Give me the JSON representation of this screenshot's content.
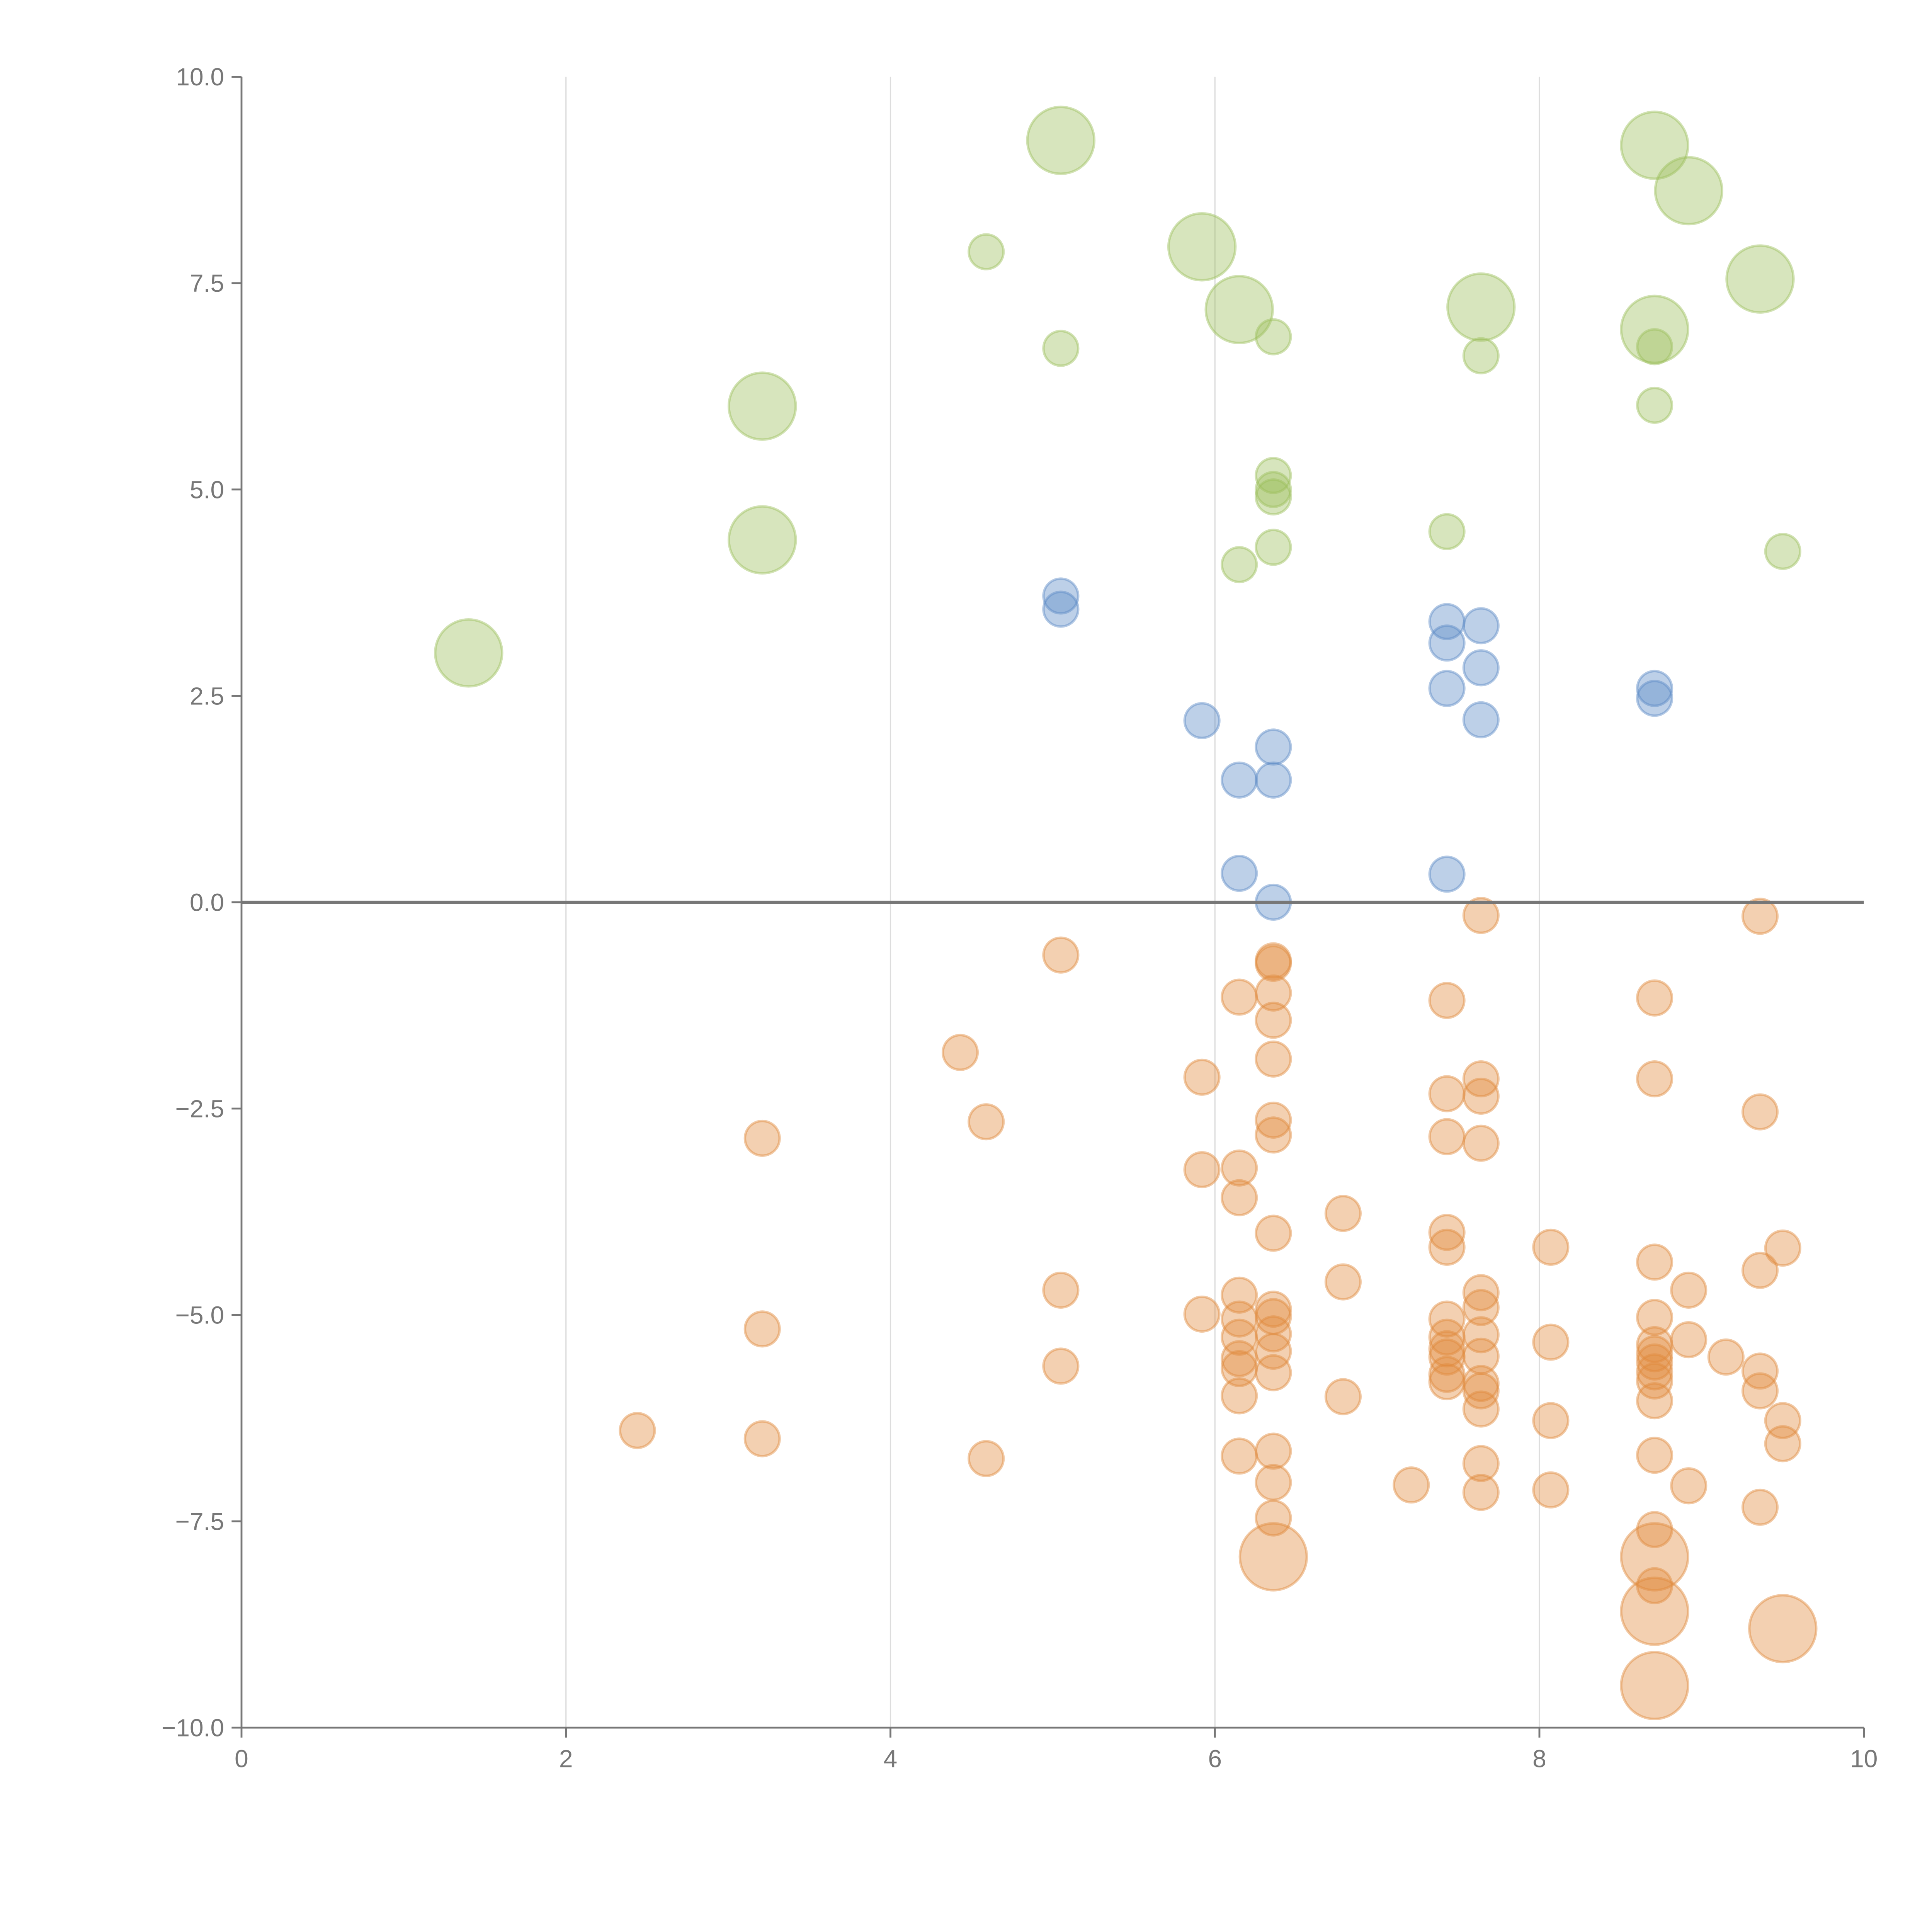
{
  "chart_data": {
    "type": "scatter",
    "title": "",
    "xlabel": "",
    "ylabel": "",
    "xlim": [
      0,
      10
    ],
    "ylim": [
      -10,
      10
    ],
    "grid": "vertical",
    "x_ticks": [
      "0",
      "2",
      "4",
      "6",
      "8",
      "10"
    ],
    "x_tick_values": [
      0,
      2,
      4,
      6,
      8,
      10
    ],
    "y_ticks": [
      "10.0",
      "7.5",
      "5.0",
      "2.5",
      "0.0",
      "−2.5",
      "−5.0",
      "−7.5",
      "−10.0"
    ],
    "y_tick_values": [
      10,
      7.5,
      5,
      2.5,
      0,
      -2.5,
      -5,
      -7.5,
      -10
    ],
    "point_format": "[x, y, size]",
    "series": [
      {
        "name": "green",
        "color": "#9bbf5a",
        "points": [
          [
            5.05,
            9.23,
            2
          ],
          [
            8.71,
            9.17,
            2
          ],
          [
            8.92,
            8.62,
            2
          ],
          [
            4.59,
            7.88,
            1
          ],
          [
            5.92,
            7.94,
            2
          ],
          [
            6.15,
            7.18,
            2
          ],
          [
            7.64,
            7.21,
            2
          ],
          [
            9.36,
            7.55,
            2
          ],
          [
            8.71,
            6.94,
            2
          ],
          [
            5.05,
            6.71,
            1
          ],
          [
            6.36,
            6.85,
            1
          ],
          [
            7.64,
            6.62,
            1
          ],
          [
            8.71,
            6.73,
            1
          ],
          [
            3.21,
            6.01,
            2
          ],
          [
            8.71,
            6.02,
            1
          ],
          [
            6.36,
            5.17,
            1
          ],
          [
            6.36,
            5.0,
            1
          ],
          [
            6.36,
            4.91,
            1
          ],
          [
            7.43,
            4.49,
            1
          ],
          [
            6.36,
            4.3,
            1
          ],
          [
            6.15,
            4.09,
            1
          ],
          [
            9.5,
            4.25,
            1
          ],
          [
            3.21,
            4.39,
            2
          ],
          [
            1.4,
            3.02,
            2
          ]
        ]
      },
      {
        "name": "blue",
        "color": "#5b8ac6",
        "points": [
          [
            5.05,
            3.71,
            1
          ],
          [
            5.05,
            3.55,
            1
          ],
          [
            7.43,
            3.4,
            1
          ],
          [
            7.43,
            3.14,
            1
          ],
          [
            7.64,
            3.35,
            1
          ],
          [
            7.64,
            2.84,
            1
          ],
          [
            7.43,
            2.59,
            1
          ],
          [
            8.71,
            2.59,
            1
          ],
          [
            8.71,
            2.47,
            1
          ],
          [
            7.64,
            2.21,
            1
          ],
          [
            5.92,
            2.2,
            1
          ],
          [
            6.36,
            1.88,
            1
          ],
          [
            6.15,
            1.48,
            1
          ],
          [
            6.36,
            1.48,
            1
          ],
          [
            6.15,
            0.35,
            1
          ],
          [
            7.43,
            0.34,
            1
          ],
          [
            6.36,
            0.0,
            1
          ]
        ]
      },
      {
        "name": "orange",
        "color": "#e08a3c",
        "points": [
          [
            7.64,
            -0.16,
            1
          ],
          [
            9.36,
            -0.17,
            1
          ],
          [
            5.05,
            -0.64,
            1
          ],
          [
            6.36,
            -0.71,
            1
          ],
          [
            6.36,
            -0.74,
            1
          ],
          [
            6.15,
            -1.15,
            1
          ],
          [
            6.36,
            -1.1,
            1
          ],
          [
            7.43,
            -1.19,
            1
          ],
          [
            8.71,
            -1.16,
            1
          ],
          [
            6.36,
            -1.43,
            1
          ],
          [
            4.43,
            -1.82,
            1
          ],
          [
            6.36,
            -1.9,
            1
          ],
          [
            5.92,
            -2.12,
            1
          ],
          [
            8.71,
            -2.14,
            1
          ],
          [
            7.64,
            -2.14,
            1
          ],
          [
            7.43,
            -2.32,
            1
          ],
          [
            7.64,
            -2.35,
            1
          ],
          [
            9.36,
            -2.54,
            1
          ],
          [
            4.59,
            -2.66,
            1
          ],
          [
            6.36,
            -2.64,
            1
          ],
          [
            6.36,
            -2.82,
            1
          ],
          [
            3.21,
            -2.86,
            1
          ],
          [
            7.43,
            -2.84,
            1
          ],
          [
            7.64,
            -2.92,
            1
          ],
          [
            5.92,
            -3.24,
            1
          ],
          [
            6.15,
            -3.22,
            1
          ],
          [
            6.15,
            -3.58,
            1
          ],
          [
            6.79,
            -3.77,
            1
          ],
          [
            7.43,
            -4.0,
            1
          ],
          [
            6.36,
            -4.01,
            1
          ],
          [
            7.43,
            -4.18,
            1
          ],
          [
            8.07,
            -4.18,
            1
          ],
          [
            9.5,
            -4.19,
            1
          ],
          [
            8.71,
            -4.36,
            1
          ],
          [
            9.36,
            -4.46,
            1
          ],
          [
            6.79,
            -4.6,
            1
          ],
          [
            5.05,
            -4.7,
            1
          ],
          [
            8.92,
            -4.7,
            1
          ],
          [
            6.15,
            -4.76,
            1
          ],
          [
            7.64,
            -4.73,
            1
          ],
          [
            7.64,
            -4.91,
            1
          ],
          [
            6.36,
            -4.93,
            1
          ],
          [
            5.92,
            -4.99,
            1
          ],
          [
            6.15,
            -5.05,
            1
          ],
          [
            7.43,
            -5.05,
            1
          ],
          [
            8.71,
            -5.03,
            1
          ],
          [
            6.36,
            -5.02,
            1
          ],
          [
            3.21,
            -5.17,
            1
          ],
          [
            6.36,
            -5.23,
            1
          ],
          [
            6.15,
            -5.27,
            1
          ],
          [
            7.43,
            -5.27,
            1
          ],
          [
            7.64,
            -5.24,
            1
          ],
          [
            8.07,
            -5.33,
            1
          ],
          [
            8.92,
            -5.3,
            1
          ],
          [
            8.71,
            -5.36,
            1
          ],
          [
            7.43,
            -5.41,
            1
          ],
          [
            6.36,
            -5.44,
            1
          ],
          [
            7.64,
            -5.5,
            1
          ],
          [
            6.15,
            -5.53,
            1
          ],
          [
            9.15,
            -5.51,
            1
          ],
          [
            8.71,
            -5.47,
            1
          ],
          [
            7.43,
            -5.51,
            1
          ],
          [
            8.71,
            -5.57,
            1
          ],
          [
            5.05,
            -5.62,
            1
          ],
          [
            6.15,
            -5.65,
            1
          ],
          [
            6.36,
            -5.7,
            1
          ],
          [
            9.36,
            -5.68,
            1
          ],
          [
            8.71,
            -5.69,
            1
          ],
          [
            7.43,
            -5.72,
            1
          ],
          [
            7.43,
            -5.81,
            1
          ],
          [
            7.64,
            -5.83,
            1
          ],
          [
            8.71,
            -5.8,
            1
          ],
          [
            9.36,
            -5.92,
            1
          ],
          [
            7.64,
            -5.92,
            1
          ],
          [
            6.15,
            -5.98,
            1
          ],
          [
            6.79,
            -5.99,
            1
          ],
          [
            8.71,
            -6.04,
            1
          ],
          [
            7.64,
            -6.14,
            1
          ],
          [
            9.5,
            -6.28,
            1
          ],
          [
            8.07,
            -6.28,
            1
          ],
          [
            2.44,
            -6.4,
            1
          ],
          [
            3.21,
            -6.5,
            1
          ],
          [
            9.5,
            -6.56,
            1
          ],
          [
            6.36,
            -6.65,
            1
          ],
          [
            6.15,
            -6.71,
            1
          ],
          [
            8.71,
            -6.7,
            1
          ],
          [
            4.59,
            -6.74,
            1
          ],
          [
            7.64,
            -6.8,
            1
          ],
          [
            6.36,
            -7.03,
            1
          ],
          [
            8.92,
            -7.07,
            1
          ],
          [
            7.21,
            -7.06,
            1
          ],
          [
            7.64,
            -7.15,
            1
          ],
          [
            8.07,
            -7.12,
            1
          ],
          [
            9.36,
            -7.33,
            1
          ],
          [
            6.36,
            -7.46,
            1
          ],
          [
            8.71,
            -7.6,
            1
          ],
          [
            6.36,
            -7.93,
            2
          ],
          [
            8.71,
            -7.93,
            2
          ],
          [
            8.71,
            -8.28,
            1
          ],
          [
            8.71,
            -8.59,
            2
          ],
          [
            9.5,
            -8.8,
            2
          ],
          [
            8.71,
            -9.49,
            2
          ]
        ]
      }
    ]
  }
}
